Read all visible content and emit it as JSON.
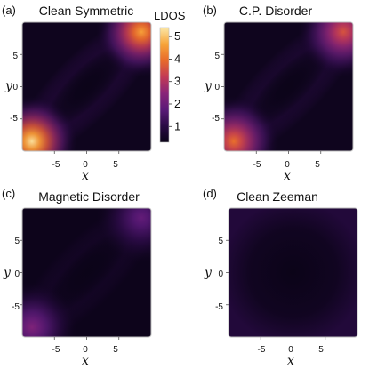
{
  "chart_data": [
    {
      "type": "heatmap",
      "panel": "(a)",
      "title": "Clean Symmetric",
      "xlabel": "x",
      "ylabel": "y",
      "xticks": [
        "-5",
        "0",
        "5"
      ],
      "yticks": [
        "5",
        "0",
        "-5"
      ],
      "xlim": [
        -10,
        10
      ],
      "ylim": [
        -10,
        10
      ],
      "hotspots": [
        {
          "x": -8.5,
          "y": -8.5,
          "value": 5.3
        },
        {
          "x": 8.5,
          "y": 8.5,
          "value": 4.6
        }
      ],
      "background": 0.4,
      "diagonal_band": 0.9
    },
    {
      "type": "heatmap",
      "panel": "(b)",
      "title": "C.P. Disorder",
      "xlabel": "x",
      "ylabel": "y",
      "xticks": [
        "-5",
        "0",
        "5"
      ],
      "yticks": [
        "5",
        "0",
        "-5"
      ],
      "xlim": [
        -10,
        10
      ],
      "ylim": [
        -10,
        10
      ],
      "hotspots": [
        {
          "x": -8.5,
          "y": -8.5,
          "value": 4.0
        },
        {
          "x": 8.5,
          "y": 8.5,
          "value": 3.6
        }
      ],
      "background": 0.4,
      "diagonal_band": 0.85
    },
    {
      "type": "heatmap",
      "panel": "(c)",
      "title": "Magnetic Disorder",
      "xlabel": "x",
      "ylabel": "y",
      "xticks": [
        "-5",
        "0",
        "5"
      ],
      "yticks": [
        "5",
        "0",
        "-5"
      ],
      "xlim": [
        -10,
        10
      ],
      "ylim": [
        -10,
        10
      ],
      "hotspots": [
        {
          "x": -8.5,
          "y": -8.5,
          "value": 2.3
        },
        {
          "x": 8.5,
          "y": 8.5,
          "value": 1.9
        }
      ],
      "background": 0.35,
      "diagonal_band": 0.6
    },
    {
      "type": "heatmap",
      "panel": "(d)",
      "title": "Clean Zeeman",
      "xlabel": "x",
      "ylabel": "y",
      "xticks": [
        "-5",
        "0",
        "5"
      ],
      "yticks": [
        "5",
        "0",
        "-5"
      ],
      "xlim": [
        -10,
        10
      ],
      "ylim": [
        -10,
        10
      ],
      "hotspots": [],
      "background": 0.45,
      "edge_glow": 0.85
    }
  ],
  "colorbar": {
    "label": "LDOS",
    "ticks": [
      "1",
      "2",
      "3",
      "4",
      "5"
    ],
    "tick_values": [
      1,
      2,
      3,
      4,
      5
    ],
    "range": [
      0.3,
      5.4
    ],
    "colors": [
      "#0b0418",
      "#2a0a45",
      "#5a1a78",
      "#8a2578",
      "#c23a55",
      "#e86a2a",
      "#f7a53a",
      "#fbe7a8"
    ]
  }
}
